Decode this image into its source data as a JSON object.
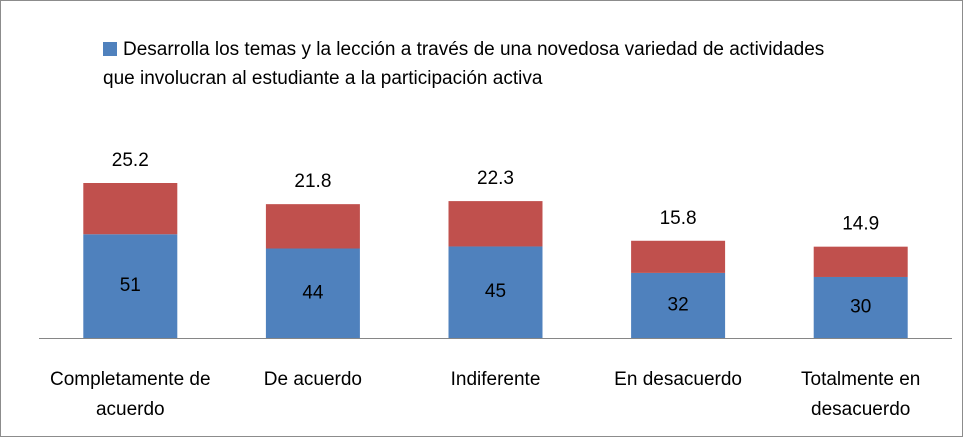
{
  "chart_data": {
    "type": "stacked_bar",
    "categories": [
      "Completamente de acuerdo",
      "De acuerdo",
      "Indiferente",
      "En desacuerdo",
      "Totalmente en desacuerdo"
    ],
    "series": [
      {
        "name": "Desarrolla los temas y la lección a través de una novedosa variedad de actividades que involucran al estudiante a la participación activa",
        "color": "#4f81bd",
        "values": [
          51,
          44,
          45,
          32,
          30
        ]
      },
      {
        "color": "#c0504d",
        "values": [
          25.2,
          21.8,
          22.3,
          15.8,
          14.9
        ]
      }
    ],
    "legend": "top"
  }
}
